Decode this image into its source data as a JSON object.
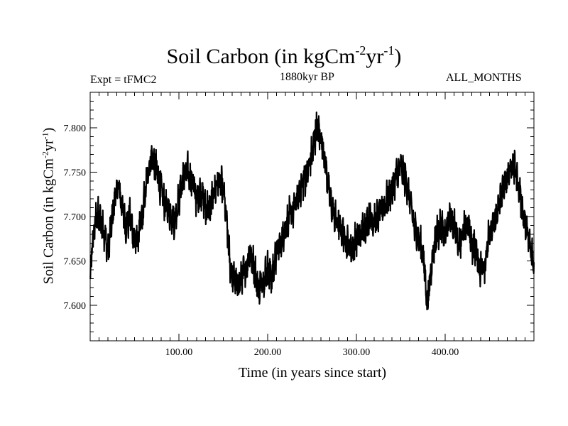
{
  "chart_data": {
    "type": "line",
    "title": {
      "main": "Soil Carbon (in kgCm",
      "exp1": "-2",
      "mid": "yr",
      "exp2": "-1",
      "end": ")"
    },
    "left_subtitle": "Expt = tFMC2",
    "center_subtitle": "1880kyr BP",
    "right_subtitle": "ALL_MONTHS",
    "ylabel": {
      "main": "Soil Carbon (in kgCm",
      "exp1": "-2",
      "mid": "yr",
      "exp2": "-1",
      "end": ")"
    },
    "xlabel": "Time (in years since start)",
    "xlim": [
      0,
      500
    ],
    "ylim": [
      7.56,
      7.84
    ],
    "xticks": [
      100,
      200,
      300,
      400
    ],
    "xtick_labels": [
      "100.00",
      "200.00",
      "300.00",
      "400.00"
    ],
    "yticks": [
      7.6,
      7.65,
      7.7,
      7.75,
      7.8
    ],
    "ytick_labels": [
      "7.600",
      "7.650",
      "7.700",
      "7.750",
      "7.800"
    ],
    "grid": false,
    "series": [
      {
        "color": "#000000",
        "x": [
          0,
          2,
          5,
          8,
          12,
          16,
          20,
          25,
          28,
          32,
          36,
          40,
          45,
          50,
          55,
          60,
          65,
          70,
          75,
          80,
          85,
          90,
          95,
          100,
          105,
          110,
          115,
          120,
          125,
          130,
          135,
          140,
          145,
          150,
          155,
          158,
          162,
          166,
          170,
          175,
          180,
          185,
          190,
          195,
          200,
          205,
          210,
          215,
          220,
          225,
          230,
          235,
          240,
          245,
          250,
          255,
          260,
          265,
          270,
          275,
          280,
          285,
          290,
          295,
          300,
          305,
          310,
          315,
          320,
          325,
          330,
          335,
          340,
          345,
          350,
          355,
          360,
          365,
          370,
          375,
          380,
          385,
          390,
          395,
          400,
          405,
          410,
          415,
          420,
          425,
          430,
          435,
          440,
          445,
          450,
          455,
          460,
          465,
          470,
          475,
          480,
          485,
          490,
          495,
          500
        ],
        "y": [
          7.625,
          7.66,
          7.69,
          7.7,
          7.695,
          7.685,
          7.66,
          7.7,
          7.72,
          7.735,
          7.71,
          7.69,
          7.7,
          7.67,
          7.68,
          7.71,
          7.75,
          7.77,
          7.75,
          7.73,
          7.71,
          7.705,
          7.695,
          7.72,
          7.745,
          7.75,
          7.74,
          7.72,
          7.73,
          7.71,
          7.71,
          7.73,
          7.74,
          7.73,
          7.68,
          7.64,
          7.63,
          7.62,
          7.63,
          7.64,
          7.66,
          7.64,
          7.62,
          7.63,
          7.64,
          7.63,
          7.66,
          7.67,
          7.69,
          7.7,
          7.71,
          7.725,
          7.74,
          7.75,
          7.77,
          7.8,
          7.79,
          7.76,
          7.72,
          7.7,
          7.69,
          7.68,
          7.67,
          7.665,
          7.675,
          7.68,
          7.69,
          7.7,
          7.695,
          7.7,
          7.71,
          7.72,
          7.73,
          7.745,
          7.755,
          7.745,
          7.72,
          7.69,
          7.675,
          7.66,
          7.6,
          7.65,
          7.68,
          7.69,
          7.675,
          7.7,
          7.69,
          7.67,
          7.68,
          7.695,
          7.67,
          7.66,
          7.64,
          7.65,
          7.68,
          7.69,
          7.71,
          7.73,
          7.745,
          7.76,
          7.75,
          7.72,
          7.69,
          7.67,
          7.65
        ]
      }
    ]
  }
}
